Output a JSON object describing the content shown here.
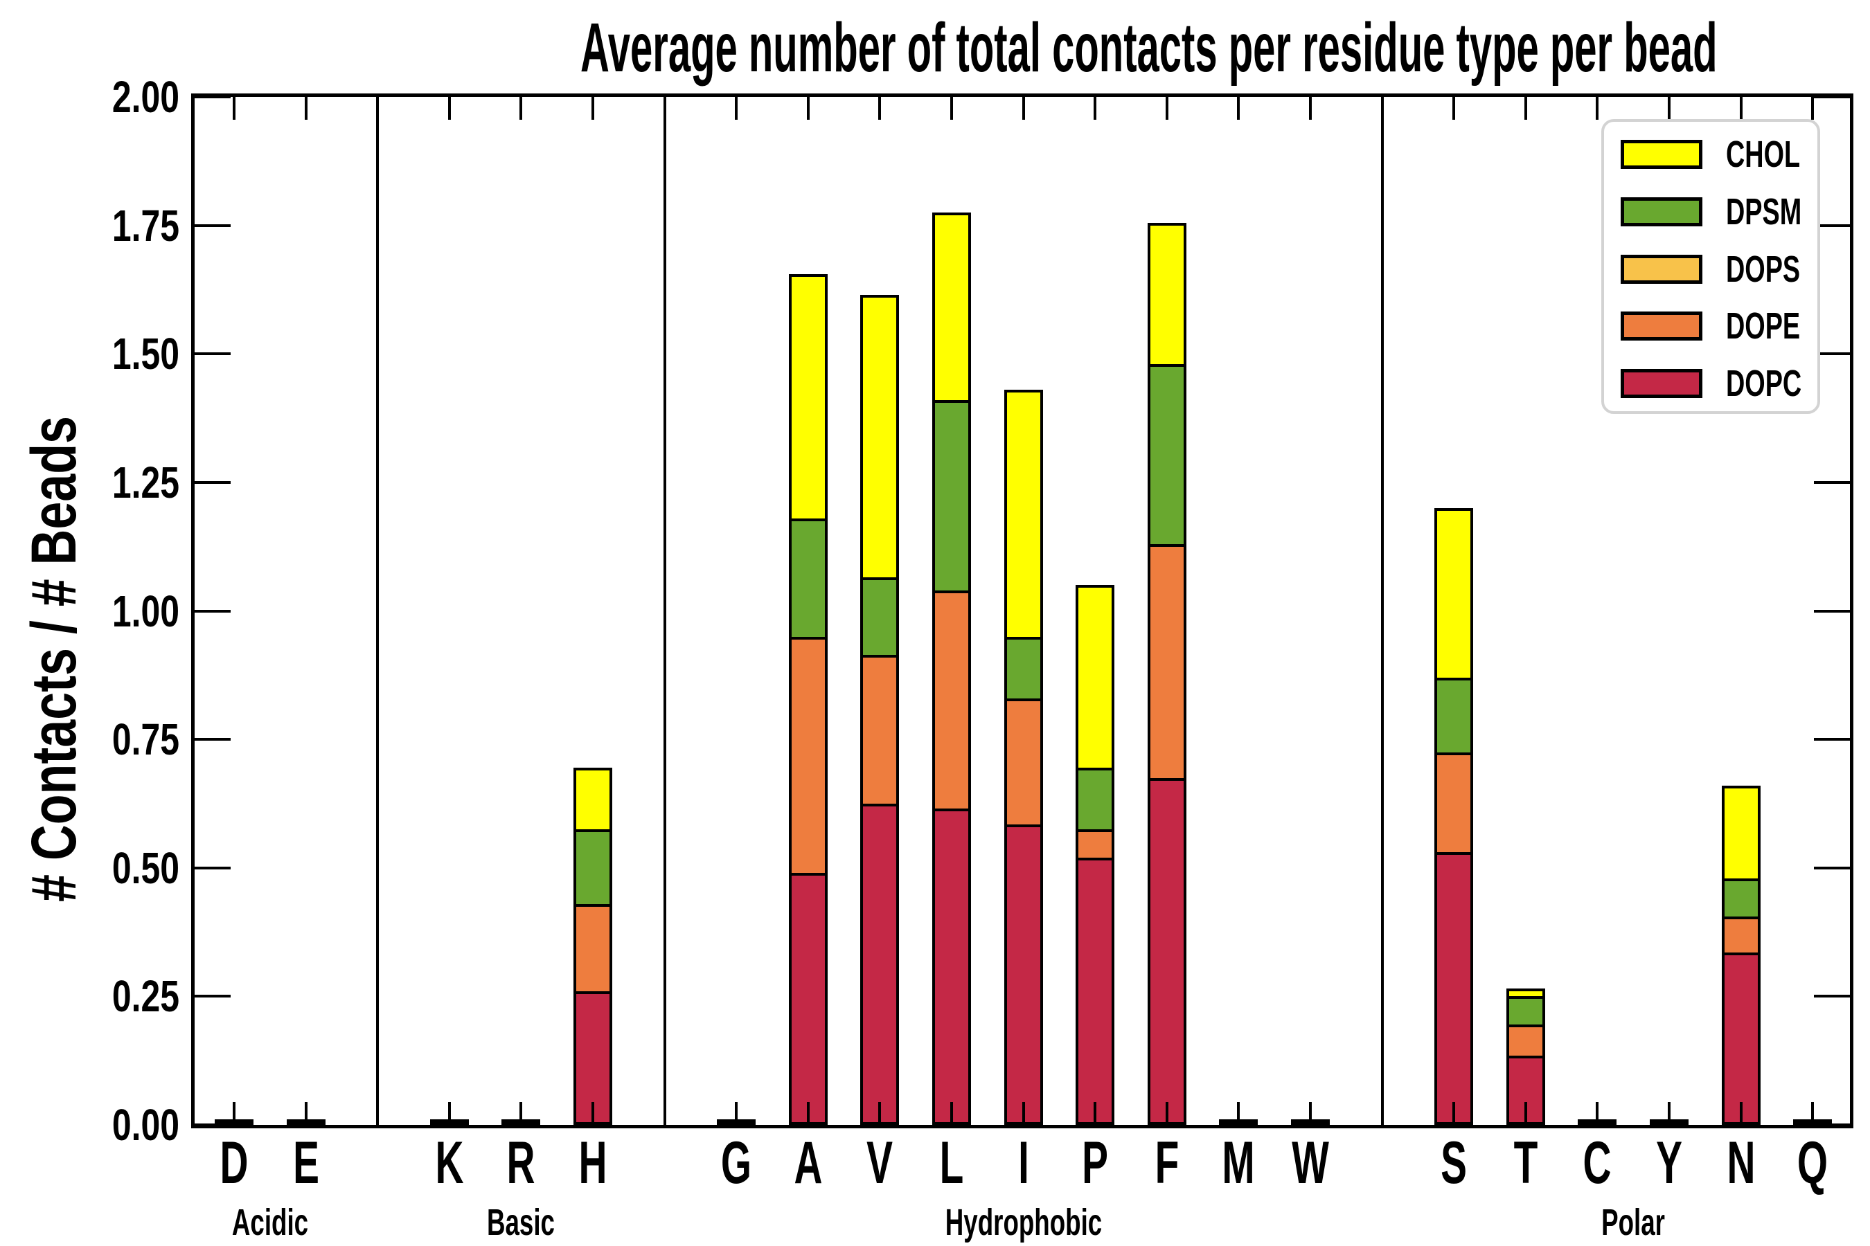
{
  "title": "Average number of total contacts per residue type per bead",
  "chart_data": {
    "type": "bar",
    "stacked": true,
    "title": "Average number of total contacts per residue type per bead",
    "xlabel": "",
    "ylabel": "# Contacts / # Beads",
    "ylim": [
      0.0,
      2.0
    ],
    "ytick_step": 0.25,
    "ytick_labels": [
      "0.00",
      "0.25",
      "0.50",
      "0.75",
      "1.00",
      "1.25",
      "1.50",
      "1.75",
      "2.00"
    ],
    "grid": false,
    "legend_position": "upper right",
    "categories": [
      "D",
      "E",
      "K",
      "R",
      "H",
      "G",
      "A",
      "V",
      "L",
      "I",
      "P",
      "F",
      "M",
      "W",
      "S",
      "T",
      "C",
      "Y",
      "N",
      "Q"
    ],
    "groups": [
      {
        "label": "Acidic",
        "residues": [
          "D",
          "E"
        ]
      },
      {
        "label": "Basic",
        "residues": [
          "K",
          "R",
          "H"
        ]
      },
      {
        "label": "Hydrophobic",
        "residues": [
          "G",
          "A",
          "V",
          "L",
          "I",
          "P",
          "F",
          "M",
          "W"
        ]
      },
      {
        "label": "Polar",
        "residues": [
          "S",
          "T",
          "C",
          "Y",
          "N",
          "Q"
        ]
      }
    ],
    "series": [
      {
        "name": "DOPC",
        "color": "#c42846",
        "values": [
          0.004,
          0.004,
          0.004,
          0.004,
          0.26,
          0.006,
          0.49,
          0.625,
          0.615,
          0.585,
          0.52,
          0.675,
          0.005,
          0.005,
          0.53,
          0.135,
          0.004,
          0.005,
          0.335,
          0.004
        ]
      },
      {
        "name": "DOPE",
        "color": "#ee7d3e",
        "values": [
          0,
          0,
          0,
          0,
          0.17,
          0,
          0.46,
          0.29,
          0.425,
          0.245,
          0.055,
          0.455,
          0,
          0,
          0.195,
          0.06,
          0,
          0,
          0.07,
          0
        ]
      },
      {
        "name": "DOPS",
        "color": "#f8c24a",
        "values": [
          0,
          0,
          0,
          0,
          0,
          0,
          0,
          0,
          0,
          0,
          0,
          0,
          0,
          0,
          0,
          0,
          0,
          0,
          0,
          0
        ]
      },
      {
        "name": "DPSM",
        "color": "#69a82f",
        "values": [
          0,
          0,
          0,
          0,
          0.145,
          0,
          0.23,
          0.15,
          0.37,
          0.12,
          0.12,
          0.35,
          0,
          0,
          0.145,
          0.055,
          0,
          0,
          0.075,
          0
        ]
      },
      {
        "name": "CHOL",
        "color": "#ffff00",
        "values": [
          0,
          0,
          0,
          0,
          0.12,
          0,
          0.475,
          0.55,
          0.365,
          0.48,
          0.355,
          0.275,
          0,
          0,
          0.33,
          0.015,
          0,
          0,
          0.18,
          0
        ]
      }
    ],
    "legend_entries_top_to_bottom": [
      {
        "label": "CHOL",
        "color": "#ffff00"
      },
      {
        "label": "DPSM",
        "color": "#69a82f"
      },
      {
        "label": "DOPS",
        "color": "#f8c24a"
      },
      {
        "label": "DOPE",
        "color": "#ee7d3e"
      },
      {
        "label": "DOPC",
        "color": "#c42846"
      }
    ]
  }
}
